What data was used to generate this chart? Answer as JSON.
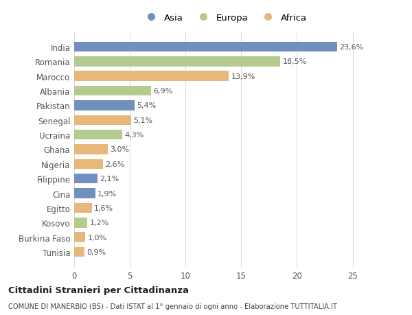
{
  "countries": [
    "India",
    "Romania",
    "Marocco",
    "Albania",
    "Pakistan",
    "Senegal",
    "Ucraina",
    "Ghana",
    "Nigeria",
    "Filippine",
    "Cina",
    "Egitto",
    "Kosovo",
    "Burkina Faso",
    "Tunisia"
  ],
  "values": [
    23.6,
    18.5,
    13.9,
    6.9,
    5.4,
    5.1,
    4.3,
    3.0,
    2.6,
    2.1,
    1.9,
    1.6,
    1.2,
    1.0,
    0.9
  ],
  "labels": [
    "23,6%",
    "18,5%",
    "13,9%",
    "6,9%",
    "5,4%",
    "5,1%",
    "4,3%",
    "3,0%",
    "2,6%",
    "2,1%",
    "1,9%",
    "1,6%",
    "1,2%",
    "1,0%",
    "0,9%"
  ],
  "continents": [
    "Asia",
    "Europa",
    "Africa",
    "Europa",
    "Asia",
    "Africa",
    "Europa",
    "Africa",
    "Africa",
    "Asia",
    "Asia",
    "Africa",
    "Europa",
    "Africa",
    "Africa"
  ],
  "colors": {
    "Asia": "#7090be",
    "Europa": "#b5ca8d",
    "Africa": "#e8b87a"
  },
  "legend_labels": [
    "Asia",
    "Europa",
    "Africa"
  ],
  "bg_color": "#ffffff",
  "grid_color": "#dddddd",
  "title": "Cittadini Stranieri per Cittadinanza",
  "subtitle": "COMUNE DI MANERBIO (BS) - Dati ISTAT al 1° gennaio di ogni anno - Elaborazione TUTTITALIA.IT",
  "xlim": [
    0,
    27
  ],
  "xticks": [
    0,
    5,
    10,
    15,
    20,
    25
  ]
}
